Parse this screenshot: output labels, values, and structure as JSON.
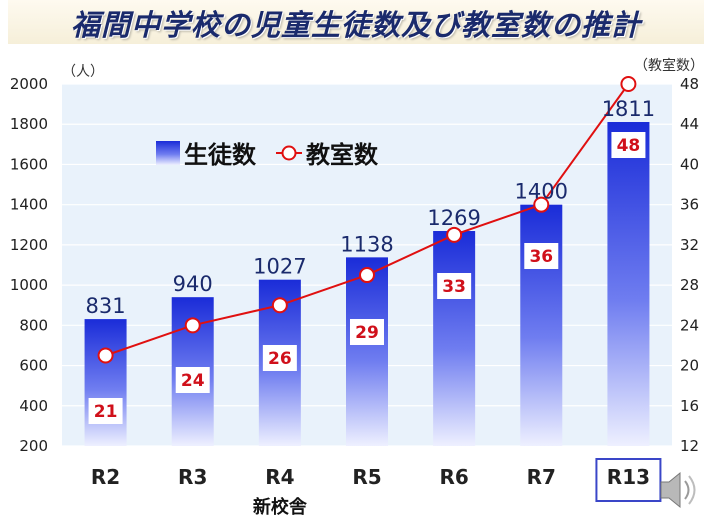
{
  "title": "福間中学校の児童生徒数及び教室数の推計",
  "chart_data": {
    "type": "bar",
    "categories": [
      "R2",
      "R3",
      "R4",
      "R5",
      "R6",
      "R7",
      "R13"
    ],
    "highlighted_category": "R13",
    "category_note": {
      "category": "R4",
      "text": "新校舎"
    },
    "series": [
      {
        "name": "生徒数",
        "type": "bar",
        "axis": "left",
        "values": [
          831,
          940,
          1027,
          1138,
          1269,
          1400,
          1811
        ],
        "color": "#2b3fe0"
      },
      {
        "name": "教室数",
        "type": "line",
        "axis": "right",
        "values": [
          21,
          24,
          26,
          29,
          33,
          36,
          48
        ],
        "color": "#e01010"
      }
    ],
    "y_left": {
      "label": "（人）",
      "ylim": [
        200,
        2000
      ],
      "ticks": [
        200,
        400,
        600,
        800,
        1000,
        1200,
        1400,
        1600,
        1800,
        2000
      ]
    },
    "y_right": {
      "label": "（教室数）",
      "ylim": [
        12,
        48
      ],
      "ticks": [
        12,
        16,
        20,
        24,
        28,
        32,
        36,
        40,
        44,
        48
      ]
    },
    "grid": true,
    "legend": {
      "placement": "top-left"
    }
  },
  "speaker_icon": "speaker-icon"
}
